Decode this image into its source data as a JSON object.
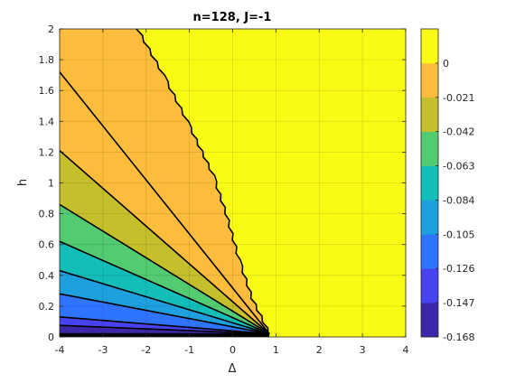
{
  "chart_data": {
    "type": "contourf",
    "title": "n=128, J=-1",
    "xlabel": "Δ",
    "ylabel": "h",
    "xlim": [
      -4,
      4
    ],
    "ylim": [
      0,
      2
    ],
    "xticks": [
      "-4",
      "-3",
      "-2",
      "-1",
      "0",
      "1",
      "2",
      "3",
      "4"
    ],
    "yticks": [
      "0",
      "0.2",
      "0.4",
      "0.6",
      "0.8",
      "1",
      "1.2",
      "1.4",
      "1.6",
      "1.8",
      "2"
    ],
    "grid": true,
    "contour_levels": [
      -0.168,
      -0.147,
      -0.126,
      -0.105,
      -0.084,
      -0.063,
      -0.042,
      -0.021,
      0
    ],
    "colorbar_ticks": [
      "0",
      "-0.021",
      "-0.042",
      "-0.063",
      "-0.084",
      "-0.105",
      "-0.126",
      "-0.147",
      "-0.168"
    ],
    "colors": [
      "#3e26a8",
      "#4743f0",
      "#2f74fe",
      "#1fa0de",
      "#13bdb8",
      "#52cb71",
      "#c5bf2c",
      "#fdbd3c",
      "#f9fb15"
    ],
    "vertex": [
      0.85,
      0.02
    ],
    "contour_left_h": [
      0.02,
      0.075,
      0.13,
      0.28,
      0.43,
      0.62,
      0.86,
      1.21,
      1.72
    ],
    "zero_contour": [
      [
        -2.2,
        2.0
      ],
      [
        -1.6,
        1.7
      ],
      [
        -1.05,
        1.4
      ],
      [
        -0.45,
        1.05
      ],
      [
        -0.15,
        0.8
      ],
      [
        0.15,
        0.5
      ],
      [
        0.45,
        0.25
      ],
      [
        0.85,
        0.02
      ]
    ]
  }
}
